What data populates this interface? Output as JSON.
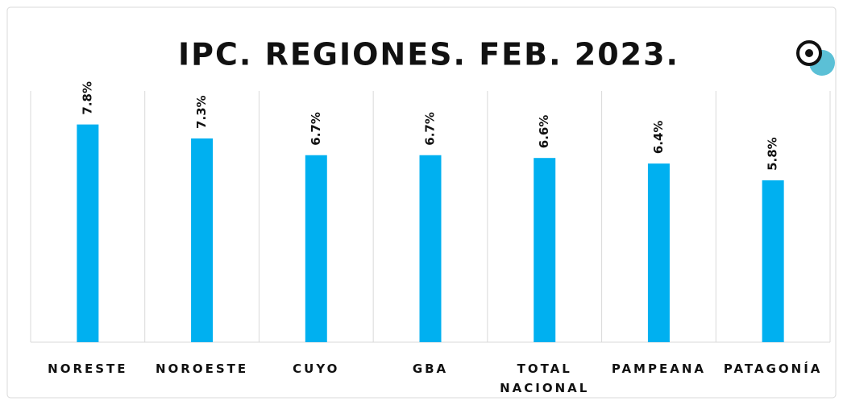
{
  "chart_data": {
    "type": "bar",
    "title": "IPC. REGIONES. FEB. 2023.",
    "categories": [
      "NORESTE",
      "NOROESTE",
      "CUYO",
      "GBA",
      "TOTAL NACIONAL",
      "PAMPEANA",
      "PATAGONÍA"
    ],
    "values": [
      7.8,
      7.3,
      6.7,
      6.7,
      6.6,
      6.4,
      5.8
    ],
    "value_labels": [
      "7.8%",
      "7.3%",
      "6.7%",
      "6.7%",
      "6.6%",
      "6.4%",
      "5.8%"
    ],
    "color": "#00b0f0",
    "ylim": [
      0,
      9
    ],
    "grid": true
  }
}
